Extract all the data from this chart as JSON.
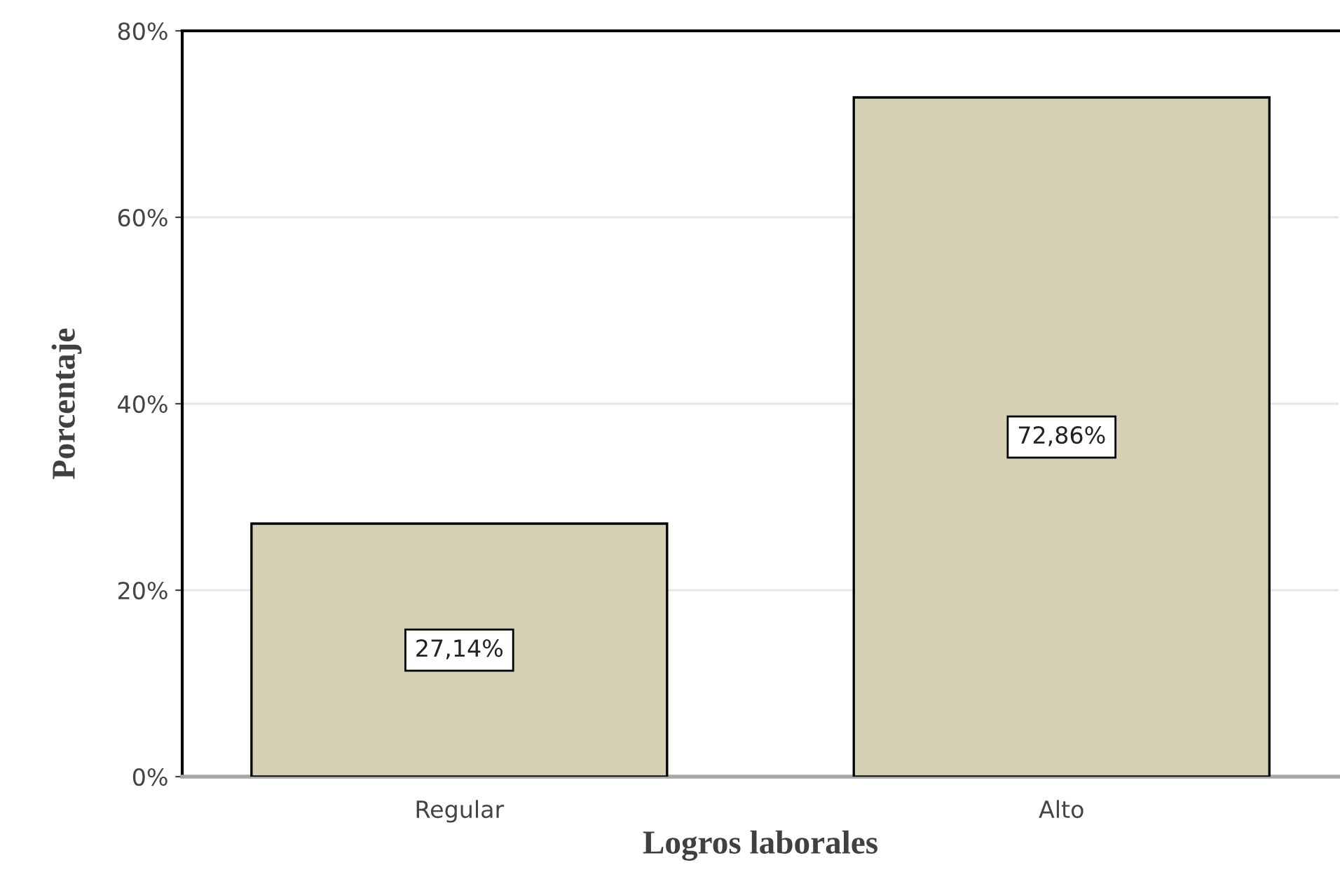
{
  "chart_data": {
    "type": "bar",
    "xlabel": "Logros laborales",
    "ylabel": "Porcentaje",
    "categories": [
      "Regular",
      "Alto"
    ],
    "values": [
      27.14,
      72.86
    ],
    "value_labels": [
      "27,14%",
      "72,86%"
    ],
    "color": "#d6d0b4",
    "ylim": [
      0,
      80
    ],
    "yticks": [
      {
        "value": 0,
        "label": "0%"
      },
      {
        "value": 20,
        "label": "20%"
      },
      {
        "value": 40,
        "label": "40%"
      },
      {
        "value": 60,
        "label": "60%"
      },
      {
        "value": 80,
        "label": "80%"
      }
    ],
    "grid": "y",
    "legend": false
  }
}
